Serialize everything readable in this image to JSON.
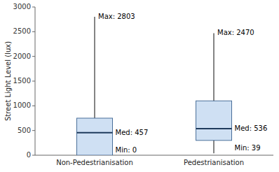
{
  "chart_data": {
    "type": "box",
    "ylabel": "Street Light Level (lux)",
    "categories": [
      "Non-Pedestrianisation",
      "Pedestrianisation"
    ],
    "boxes": [
      {
        "min": 0,
        "q1": 0,
        "median": 457,
        "q3": 750,
        "max": 2803,
        "annotations": {
          "max": "Max: 2803",
          "median": "Med: 457",
          "min": "Min: 0"
        }
      },
      {
        "min": 39,
        "q1": 300,
        "median": 536,
        "q3": 1100,
        "max": 2470,
        "annotations": {
          "max": "Max: 2470",
          "median": "Med: 536",
          "min": "Min: 39"
        }
      }
    ],
    "ylim": [
      0,
      3000
    ],
    "yticks": [
      0,
      500,
      1000,
      1500,
      2000,
      2500,
      3000
    ]
  }
}
